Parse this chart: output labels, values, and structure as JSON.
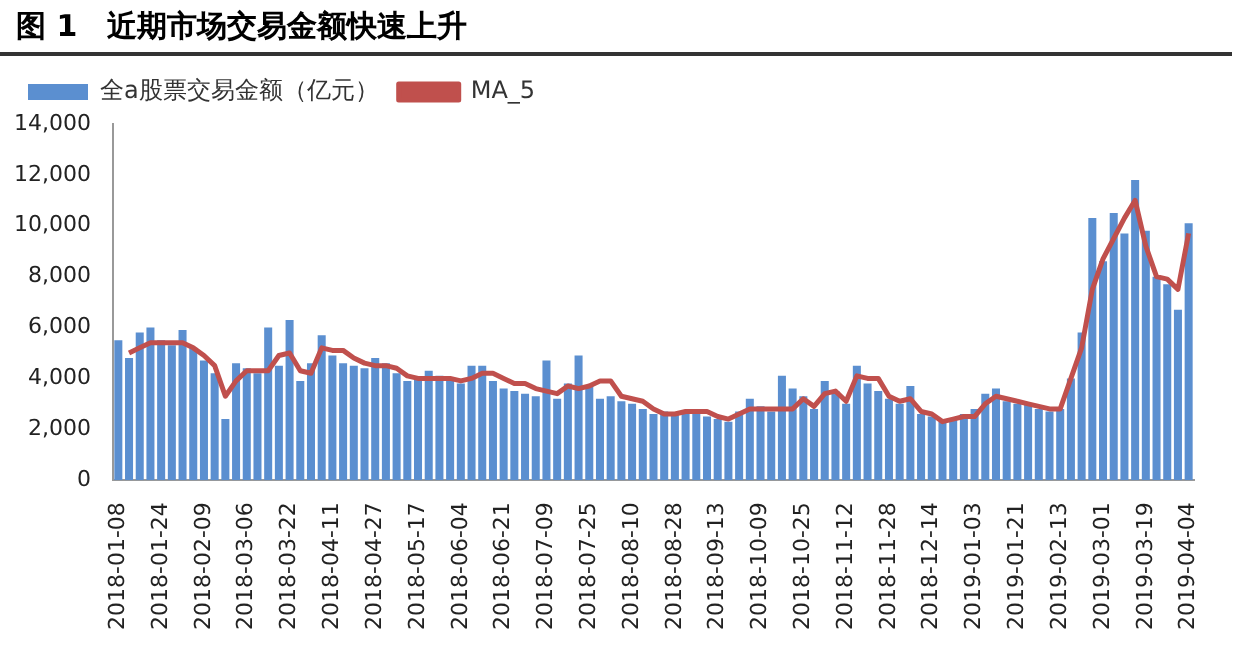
{
  "chart_data": {
    "type": "bar",
    "title": "图 1　近期市场交易金额快速上升",
    "categories": [
      "2018-01-08",
      null,
      null,
      null,
      "2018-01-24",
      null,
      null,
      null,
      "2018-02-09",
      null,
      null,
      null,
      "2018-03-06",
      null,
      null,
      null,
      "2018-03-22",
      null,
      null,
      null,
      "2018-04-11",
      null,
      null,
      null,
      "2018-04-27",
      null,
      null,
      null,
      "2018-05-17",
      null,
      null,
      null,
      "2018-06-04",
      null,
      null,
      null,
      "2018-06-21",
      null,
      null,
      null,
      "2018-07-09",
      null,
      null,
      null,
      "2018-07-25",
      null,
      null,
      null,
      "2018-08-10",
      null,
      null,
      null,
      "2018-08-28",
      null,
      null,
      null,
      "2018-09-13",
      null,
      null,
      null,
      "2018-10-09",
      null,
      null,
      null,
      "2018-10-25",
      null,
      null,
      null,
      "2018-11-12",
      null,
      null,
      null,
      "2018-11-28",
      null,
      null,
      null,
      "2018-12-14",
      null,
      null,
      null,
      "2019-01-03",
      null,
      null,
      null,
      "2019-01-21",
      null,
      null,
      null,
      "2019-02-13",
      null,
      null,
      null,
      "2019-03-01",
      null,
      null,
      null,
      "2019-03-19",
      null,
      null,
      null,
      "2019-04-04"
    ],
    "series": [
      {
        "name": "全a股票交易金额（亿元）",
        "color": "#5b8fd0",
        "values": [
          5500,
          4800,
          5800,
          6000,
          5500,
          5300,
          5900,
          5200,
          4700,
          4200,
          2400,
          4600,
          4400,
          4200,
          6000,
          4500,
          6300,
          3900,
          4600,
          5700,
          4900,
          4600,
          4500,
          4400,
          4800,
          4600,
          4200,
          3900,
          4000,
          4300,
          4100,
          3900,
          3800,
          4500,
          4500,
          3900,
          3600,
          3500,
          3400,
          3300,
          4700,
          3200,
          3800,
          4900,
          3700,
          3200,
          3300,
          3100,
          3000,
          2800,
          2600,
          2700,
          2600,
          2700,
          2600,
          2500,
          2400,
          2300,
          2700,
          3200,
          2900,
          2700,
          4100,
          3600,
          3300,
          2800,
          3900,
          3500,
          3000,
          4500,
          3800,
          3500,
          3200,
          3000,
          3700,
          2600,
          2500,
          2300,
          2400,
          2600,
          2800,
          3400,
          3600,
          3100,
          3000,
          3000,
          2800,
          2700,
          2800,
          4000,
          5800,
          10300,
          8600,
          10500,
          9700,
          11800,
          9800,
          8000,
          7700,
          6700,
          10100
        ]
      },
      {
        "name": "MA_5",
        "type": "line",
        "color": "#c0504d",
        "values": [
          null,
          5000,
          5200,
          5400,
          5400,
          5400,
          5400,
          5200,
          4900,
          4500,
          3300,
          3900,
          4300,
          4300,
          4300,
          4900,
          5000,
          4300,
          4200,
          5200,
          5100,
          5100,
          4800,
          4600,
          4500,
          4500,
          4400,
          4100,
          4000,
          4000,
          4000,
          4000,
          3900,
          4000,
          4200,
          4200,
          4000,
          3800,
          3800,
          3600,
          3500,
          3400,
          3700,
          3600,
          3700,
          3900,
          3900,
          3300,
          3200,
          3100,
          2800,
          2600,
          2600,
          2700,
          2700,
          2700,
          2500,
          2400,
          2600,
          2800,
          2800,
          2800,
          2800,
          2800,
          3200,
          2900,
          3400,
          3500,
          3100,
          4100,
          4000,
          4000,
          3300,
          3100,
          3200,
          2700,
          2600,
          2300,
          2400,
          2500,
          2500,
          3000,
          3300,
          3200,
          3100,
          3000,
          2900,
          2800,
          2800,
          4000,
          5200,
          7500,
          8700,
          9500,
          10300,
          11000,
          9200,
          8000,
          7900,
          7500,
          9700
        ]
      }
    ],
    "ylim": [
      0,
      14000
    ],
    "yticks": [
      0,
      {
        "value": 2000,
        "label": "2,000"
      },
      {
        "value": 4000,
        "label": "4,000"
      },
      {
        "value": 6000,
        "label": "6,000"
      },
      {
        "value": 8000,
        "label": "8,000"
      },
      {
        "value": 10000,
        "label": "10,000"
      },
      {
        "value": 12000,
        "label": "12,000"
      },
      {
        "value": 14000,
        "label": "14,000"
      }
    ],
    "grid": false,
    "legend": "top left",
    "marker": "none",
    "line_style": "solid"
  }
}
